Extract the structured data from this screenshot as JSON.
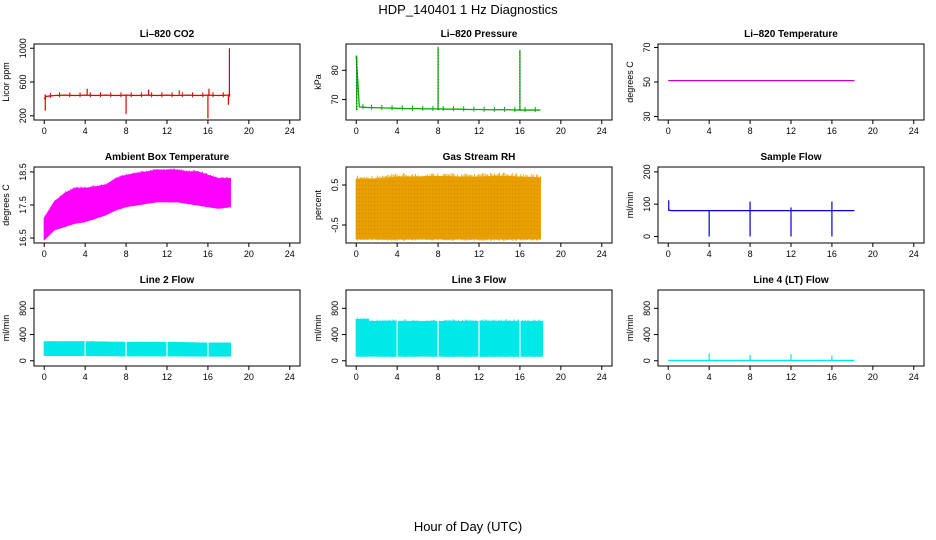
{
  "figure": {
    "title": "HDP_140401  1 Hz Diagnostics",
    "xlabel": "Hour of Day (UTC)"
  },
  "chart_data": [
    {
      "type": "line",
      "title": "Li–820 CO2",
      "ylabel": "Licor ppm",
      "color": "#dd0000",
      "xlim": [
        -1,
        25
      ],
      "ylim": [
        150,
        1050
      ],
      "xticks": [
        0,
        4,
        8,
        12,
        16,
        20,
        24
      ],
      "yticks": [
        200,
        600,
        1000
      ],
      "x": [
        0,
        0.2,
        1,
        2,
        3,
        4,
        5,
        6,
        7,
        8,
        9,
        10,
        11,
        12,
        13,
        14,
        15,
        16,
        17,
        18,
        18.2
      ],
      "y": [
        400,
        430,
        440,
        445,
        440,
        445,
        440,
        445,
        440,
        445,
        440,
        445,
        440,
        445,
        440,
        445,
        440,
        445,
        440,
        445,
        450
      ],
      "spikes_up": [
        {
          "x": 4.2,
          "y": 520
        },
        {
          "x": 10.2,
          "y": 510
        },
        {
          "x": 13.2,
          "y": 500
        },
        {
          "x": 16.1,
          "y": 520
        },
        {
          "x": 18.1,
          "y": 1000
        }
      ],
      "spikes_down": [
        {
          "x": 0.1,
          "y": 260
        },
        {
          "x": 8.0,
          "y": 220
        },
        {
          "x": 16.0,
          "y": 170
        },
        {
          "x": 18.0,
          "y": 330
        }
      ]
    },
    {
      "type": "line",
      "title": "Li–820 Pressure",
      "ylabel": "kPa",
      "color": "#00aa00",
      "xlim": [
        -1,
        25
      ],
      "ylim": [
        63,
        89
      ],
      "xticks": [
        0,
        4,
        8,
        12,
        16,
        20,
        24
      ],
      "yticks": [
        70,
        80
      ],
      "x": [
        0,
        0.3,
        1,
        2,
        3,
        4,
        5,
        6,
        7,
        8,
        9,
        10,
        11,
        12,
        13,
        14,
        15,
        16,
        17,
        18
      ],
      "y": [
        85,
        67.5,
        67.3,
        67.2,
        67.1,
        67.0,
        66.9,
        66.9,
        66.8,
        66.8,
        66.7,
        66.7,
        66.6,
        66.6,
        66.5,
        66.5,
        66.5,
        66.4,
        66.4,
        66.4
      ],
      "spikes_up": [
        {
          "x": 0.05,
          "y": 85
        },
        {
          "x": 8.0,
          "y": 88
        },
        {
          "x": 16.0,
          "y": 87
        }
      ],
      "spikes_down": []
    },
    {
      "type": "line",
      "title": "Li–820 Temperature",
      "ylabel": "degrees C",
      "color": "#cc00cc",
      "xlim": [
        -1,
        25
      ],
      "ylim": [
        28,
        72
      ],
      "xticks": [
        0,
        4,
        8,
        12,
        16,
        20,
        24
      ],
      "yticks": [
        30,
        50,
        70
      ],
      "x": [
        0,
        18.2
      ],
      "y": [
        50.8,
        50.8
      ],
      "spikes_up": [],
      "spikes_down": []
    },
    {
      "type": "area",
      "title": "Ambient Box Temperature",
      "ylabel": "degrees C",
      "color": "#ff00ff",
      "xlim": [
        -1,
        25
      ],
      "ylim": [
        16.35,
        18.65
      ],
      "xticks": [
        0,
        4,
        8,
        12,
        16,
        20,
        24
      ],
      "yticks": [
        16.5,
        17.5,
        18.5
      ],
      "x": [
        0,
        1,
        2,
        3,
        4,
        5,
        6,
        7,
        8,
        9,
        10,
        11,
        12,
        13,
        14,
        15,
        16,
        17,
        18.2
      ],
      "upper": [
        17.1,
        17.6,
        17.85,
        18.0,
        18.0,
        18.05,
        18.1,
        18.3,
        18.4,
        18.45,
        18.5,
        18.55,
        18.55,
        18.55,
        18.5,
        18.5,
        18.4,
        18.3,
        18.3
      ],
      "lower": [
        16.45,
        16.75,
        16.85,
        16.95,
        17.0,
        17.1,
        17.2,
        17.35,
        17.45,
        17.5,
        17.55,
        17.6,
        17.6,
        17.6,
        17.55,
        17.5,
        17.45,
        17.4,
        17.45
      ]
    },
    {
      "type": "area",
      "title": "Gas Stream RH",
      "ylabel": "percent",
      "color": "#e8a000",
      "xlim": [
        -1,
        25
      ],
      "ylim": [
        -0.95,
        0.95
      ],
      "xticks": [
        0,
        4,
        8,
        12,
        16,
        20,
        24
      ],
      "yticks": [
        -0.5,
        0.5
      ],
      "x": [
        0,
        2,
        4,
        6,
        8,
        10,
        12,
        14,
        16,
        18
      ],
      "upper": [
        0.65,
        0.65,
        0.7,
        0.7,
        0.72,
        0.7,
        0.7,
        0.72,
        0.7,
        0.68
      ],
      "lower": [
        -0.85,
        -0.85,
        -0.85,
        -0.85,
        -0.85,
        -0.85,
        -0.85,
        -0.85,
        -0.85,
        -0.85
      ]
    },
    {
      "type": "line",
      "title": "Sample Flow",
      "ylabel": "ml/min",
      "color": "#0000dd",
      "xlim": [
        -1,
        25
      ],
      "ylim": [
        -20,
        215
      ],
      "xticks": [
        0,
        4,
        8,
        12,
        16,
        20,
        24
      ],
      "yticks": [
        0,
        100,
        200
      ],
      "x": [
        0,
        0.3,
        18.2
      ],
      "y": [
        82,
        80,
        80
      ],
      "spikes_up": [
        {
          "x": 0.05,
          "y": 112
        },
        {
          "x": 8.0,
          "y": 108
        },
        {
          "x": 12.0,
          "y": 90
        },
        {
          "x": 16.0,
          "y": 108
        }
      ],
      "spikes_down": [
        {
          "x": 4.0,
          "y": 0
        },
        {
          "x": 8.0,
          "y": 0
        },
        {
          "x": 12.0,
          "y": 0
        },
        {
          "x": 16.0,
          "y": 0
        }
      ]
    },
    {
      "type": "area",
      "title": "Line 2 Flow",
      "ylabel": "ml/min",
      "color": "#00e8e8",
      "xlim": [
        -1,
        25
      ],
      "ylim": [
        -80,
        1080
      ],
      "xticks": [
        0,
        4,
        8,
        12,
        16,
        20,
        24
      ],
      "yticks": [
        0,
        400,
        800
      ],
      "x": [
        0,
        4,
        8,
        12,
        16,
        18.2
      ],
      "upper": [
        290,
        290,
        280,
        280,
        270,
        270
      ],
      "lower": [
        80,
        80,
        75,
        75,
        70,
        70
      ],
      "gaps": [
        4.0,
        8.0,
        12.0,
        16.0
      ]
    },
    {
      "type": "area",
      "title": "Line 3 Flow",
      "ylabel": "ml/min",
      "color": "#00e8e8",
      "xlim": [
        -1,
        25
      ],
      "ylim": [
        -80,
        1080
      ],
      "xticks": [
        0,
        4,
        8,
        12,
        16,
        20,
        24
      ],
      "yticks": [
        0,
        400,
        800
      ],
      "x": [
        0,
        1.2,
        1.3,
        4,
        8,
        12,
        16,
        18.2
      ],
      "upper": [
        630,
        630,
        600,
        600,
        600,
        600,
        600,
        600
      ],
      "lower": [
        70,
        70,
        70,
        70,
        70,
        70,
        70,
        70
      ],
      "gaps": [
        4.0,
        8.0,
        12.0,
        16.0
      ]
    },
    {
      "type": "line",
      "title": "Line 4 (LT) Flow",
      "ylabel": "ml/min",
      "color": "#00e8e8",
      "xlim": [
        -1,
        25
      ],
      "ylim": [
        -80,
        1080
      ],
      "xticks": [
        0,
        4,
        8,
        12,
        16,
        20,
        24
      ],
      "yticks": [
        0,
        400,
        800
      ],
      "x": [
        0,
        18.2
      ],
      "y": [
        5,
        5
      ],
      "spikes_up": [
        {
          "x": 4.0,
          "y": 110
        },
        {
          "x": 8.0,
          "y": 90
        },
        {
          "x": 12.0,
          "y": 100
        },
        {
          "x": 16.0,
          "y": 80
        }
      ],
      "spikes_down": []
    }
  ]
}
